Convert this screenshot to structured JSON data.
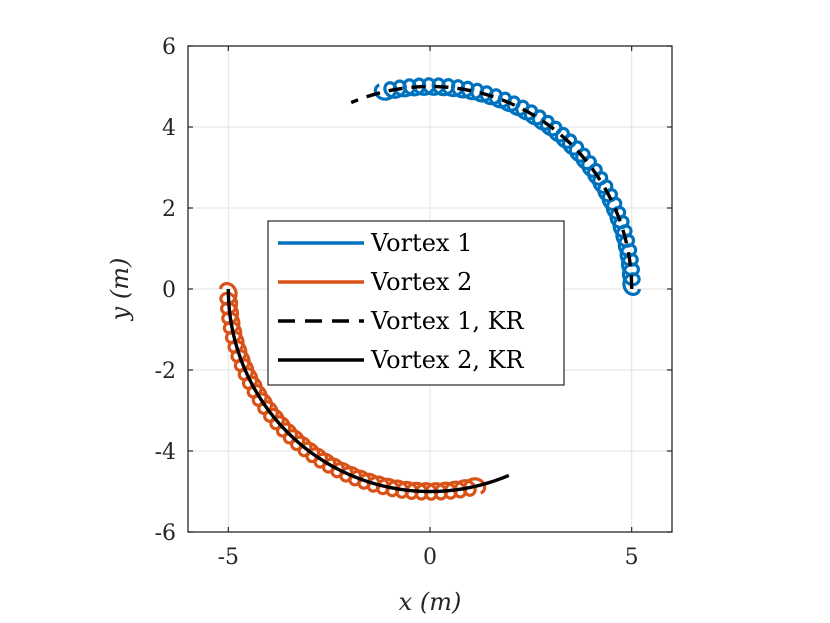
{
  "chart_data": {
    "type": "line",
    "title": "",
    "xlabel": "x (m)",
    "ylabel": "y (m)",
    "xlim": [
      -6,
      6
    ],
    "ylim": [
      -6,
      6
    ],
    "xticks": [
      -5,
      0,
      5
    ],
    "yticks": [
      -6,
      -4,
      -2,
      0,
      2,
      4,
      6
    ],
    "xtick_labels": [
      "-5",
      "0",
      "5"
    ],
    "ytick_labels": [
      "-6",
      "-4",
      "-2",
      "0",
      "2",
      "4",
      "6"
    ],
    "grid": true,
    "legend": {
      "position": "center-left",
      "entries": [
        "Vortex 1",
        "Vortex 2",
        "Vortex 1, KR",
        "Vortex 2, KR"
      ]
    },
    "series": [
      {
        "name": "Vortex 1",
        "color": "#0072BD",
        "style": "solid-loops",
        "center": [
          0,
          0
        ],
        "radius": 5.0,
        "angle_start_deg": 0,
        "angle_end_deg": 104,
        "loop_radius": 0.19,
        "loops": 38
      },
      {
        "name": "Vortex 2",
        "color": "#D95319",
        "style": "solid-loops",
        "center": [
          0,
          0
        ],
        "radius": 5.0,
        "angle_start_deg": 180,
        "angle_end_deg": 284,
        "loop_radius": 0.19,
        "loops": 38
      },
      {
        "name": "Vortex 1, KR",
        "color": "#000000",
        "style": "dashed",
        "center": [
          0,
          0
        ],
        "radius": 5.0,
        "angle_start_deg": 0,
        "angle_end_deg": 113
      },
      {
        "name": "Vortex 2, KR",
        "color": "#000000",
        "style": "solid",
        "center": [
          0,
          0
        ],
        "radius": 5.0,
        "angle_start_deg": 180,
        "angle_end_deg": 293
      }
    ]
  }
}
